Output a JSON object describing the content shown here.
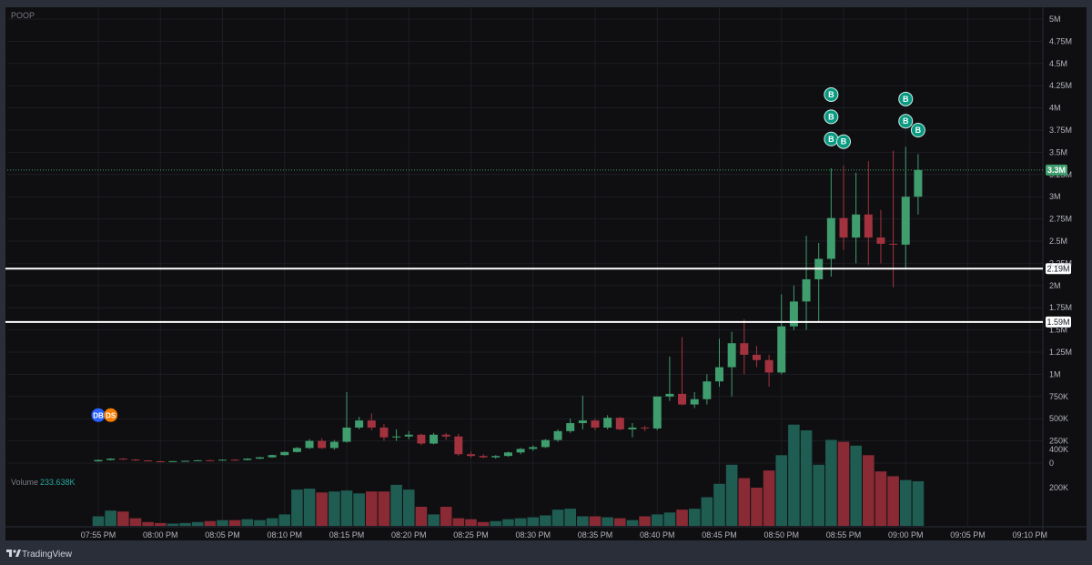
{
  "symbol": "POOP",
  "volume_label": "Volume",
  "volume_value": "233.638K",
  "brand": "TradingView",
  "colors": {
    "background": "#0f0f11",
    "frame": "#2a2e39",
    "up": "#26a69a",
    "up_body": "#3f9d6e",
    "down": "#a3323f",
    "vol_up": "#1f5c52",
    "vol_down": "#8a2a35",
    "grid": "#1c1e24",
    "marker": "#089981"
  },
  "chart_data": {
    "type": "candlestick",
    "title": "POOP",
    "price_ticks": [
      "0",
      "250K",
      "500K",
      "750K",
      "1M",
      "1.25M",
      "1.5M",
      "1.75M",
      "2M",
      "2.25M",
      "2.5M",
      "2.75M",
      "3M",
      "3.25M",
      "3.5M",
      "3.75M",
      "4M",
      "4.25M",
      "4.5M",
      "4.75M",
      "5M"
    ],
    "volume_ticks": [
      "200K",
      "400K"
    ],
    "time_ticks": [
      "07:55 PM",
      "08:00 PM",
      "08:05 PM",
      "08:10 PM",
      "08:15 PM",
      "08:20 PM",
      "08:25 PM",
      "08:30 PM",
      "08:35 PM",
      "08:40 PM",
      "08:45 PM",
      "08:50 PM",
      "08:55 PM",
      "09:00 PM",
      "09:05 PM",
      "09:10 PM"
    ],
    "ylim": [
      0,
      5000000
    ],
    "current_price_label": "3.3M",
    "horizontal_lines": [
      {
        "value": 2190000,
        "label": "2.19M"
      },
      {
        "value": 1590000,
        "label": "1.59M"
      }
    ],
    "candles": [
      {
        "t": "07:55 PM",
        "o": 20000,
        "h": 40000,
        "l": 15000,
        "c": 35000,
        "v": 50000
      },
      {
        "t": "07:56 PM",
        "o": 35000,
        "h": 55000,
        "l": 30000,
        "c": 50000,
        "v": 80000
      },
      {
        "t": "07:57 PM",
        "o": 50000,
        "h": 55000,
        "l": 35000,
        "c": 40000,
        "v": 75000
      },
      {
        "t": "07:58 PM",
        "o": 40000,
        "h": 45000,
        "l": 25000,
        "c": 30000,
        "v": 40000
      },
      {
        "t": "07:59 PM",
        "o": 30000,
        "h": 32000,
        "l": 18000,
        "c": 20000,
        "v": 20000
      },
      {
        "t": "08:00 PM",
        "o": 20000,
        "h": 25000,
        "l": 15000,
        "c": 18000,
        "v": 15000
      },
      {
        "t": "08:01 PM",
        "o": 18000,
        "h": 24000,
        "l": 14000,
        "c": 22000,
        "v": 12000
      },
      {
        "t": "08:02 PM",
        "o": 22000,
        "h": 28000,
        "l": 18000,
        "c": 25000,
        "v": 15000
      },
      {
        "t": "08:03 PM",
        "o": 25000,
        "h": 35000,
        "l": 22000,
        "c": 32000,
        "v": 20000
      },
      {
        "t": "08:04 PM",
        "o": 32000,
        "h": 38000,
        "l": 26000,
        "c": 30000,
        "v": 25000
      },
      {
        "t": "08:05 PM",
        "o": 30000,
        "h": 40000,
        "l": 25000,
        "c": 38000,
        "v": 30000
      },
      {
        "t": "08:06 PM",
        "o": 38000,
        "h": 45000,
        "l": 30000,
        "c": 35000,
        "v": 30000
      },
      {
        "t": "08:07 PM",
        "o": 35000,
        "h": 55000,
        "l": 30000,
        "c": 50000,
        "v": 35000
      },
      {
        "t": "08:08 PM",
        "o": 50000,
        "h": 70000,
        "l": 45000,
        "c": 65000,
        "v": 30000
      },
      {
        "t": "08:09 PM",
        "o": 65000,
        "h": 95000,
        "l": 60000,
        "c": 90000,
        "v": 40000
      },
      {
        "t": "08:10 PM",
        "o": 90000,
        "h": 130000,
        "l": 85000,
        "c": 125000,
        "v": 60000
      },
      {
        "t": "08:11 PM",
        "o": 125000,
        "h": 180000,
        "l": 120000,
        "c": 170000,
        "v": 190000
      },
      {
        "t": "08:12 PM",
        "o": 170000,
        "h": 270000,
        "l": 160000,
        "c": 250000,
        "v": 195000
      },
      {
        "t": "08:13 PM",
        "o": 250000,
        "h": 280000,
        "l": 160000,
        "c": 170000,
        "v": 175000
      },
      {
        "t": "08:14 PM",
        "o": 170000,
        "h": 260000,
        "l": 150000,
        "c": 240000,
        "v": 180000
      },
      {
        "t": "08:15 PM",
        "o": 240000,
        "h": 800000,
        "l": 230000,
        "c": 400000,
        "v": 185000
      },
      {
        "t": "08:16 PM",
        "o": 400000,
        "h": 520000,
        "l": 380000,
        "c": 480000,
        "v": 170000
      },
      {
        "t": "08:17 PM",
        "o": 480000,
        "h": 560000,
        "l": 370000,
        "c": 400000,
        "v": 180000
      },
      {
        "t": "08:18 PM",
        "o": 400000,
        "h": 440000,
        "l": 250000,
        "c": 290000,
        "v": 180000
      },
      {
        "t": "08:19 PM",
        "o": 290000,
        "h": 380000,
        "l": 250000,
        "c": 300000,
        "v": 215000
      },
      {
        "t": "08:20 PM",
        "o": 300000,
        "h": 360000,
        "l": 270000,
        "c": 320000,
        "v": 190000
      },
      {
        "t": "08:21 PM",
        "o": 320000,
        "h": 330000,
        "l": 200000,
        "c": 220000,
        "v": 100000
      },
      {
        "t": "08:22 PM",
        "o": 220000,
        "h": 340000,
        "l": 210000,
        "c": 320000,
        "v": 60000
      },
      {
        "t": "08:23 PM",
        "o": 320000,
        "h": 340000,
        "l": 260000,
        "c": 300000,
        "v": 100000
      },
      {
        "t": "08:24 PM",
        "o": 300000,
        "h": 330000,
        "l": 80000,
        "c": 100000,
        "v": 40000
      },
      {
        "t": "08:25 PM",
        "o": 100000,
        "h": 130000,
        "l": 60000,
        "c": 80000,
        "v": 35000
      },
      {
        "t": "08:26 PM",
        "o": 80000,
        "h": 100000,
        "l": 55000,
        "c": 65000,
        "v": 20000
      },
      {
        "t": "08:27 PM",
        "o": 65000,
        "h": 90000,
        "l": 50000,
        "c": 80000,
        "v": 25000
      },
      {
        "t": "08:28 PM",
        "o": 80000,
        "h": 130000,
        "l": 70000,
        "c": 120000,
        "v": 35000
      },
      {
        "t": "08:29 PM",
        "o": 120000,
        "h": 170000,
        "l": 100000,
        "c": 160000,
        "v": 40000
      },
      {
        "t": "08:30 PM",
        "o": 160000,
        "h": 200000,
        "l": 140000,
        "c": 180000,
        "v": 45000
      },
      {
        "t": "08:31 PM",
        "o": 180000,
        "h": 270000,
        "l": 170000,
        "c": 260000,
        "v": 55000
      },
      {
        "t": "08:32 PM",
        "o": 260000,
        "h": 380000,
        "l": 240000,
        "c": 360000,
        "v": 85000
      },
      {
        "t": "08:33 PM",
        "o": 360000,
        "h": 500000,
        "l": 340000,
        "c": 450000,
        "v": 90000
      },
      {
        "t": "08:34 PM",
        "o": 450000,
        "h": 760000,
        "l": 380000,
        "c": 480000,
        "v": 50000
      },
      {
        "t": "08:35 PM",
        "o": 480000,
        "h": 500000,
        "l": 370000,
        "c": 400000,
        "v": 50000
      },
      {
        "t": "08:36 PM",
        "o": 400000,
        "h": 540000,
        "l": 380000,
        "c": 510000,
        "v": 45000
      },
      {
        "t": "08:37 PM",
        "o": 510000,
        "h": 520000,
        "l": 370000,
        "c": 380000,
        "v": 40000
      },
      {
        "t": "08:38 PM",
        "o": 380000,
        "h": 450000,
        "l": 290000,
        "c": 400000,
        "v": 30000
      },
      {
        "t": "08:39 PM",
        "o": 400000,
        "h": 420000,
        "l": 360000,
        "c": 390000,
        "v": 50000
      },
      {
        "t": "08:40 PM",
        "o": 390000,
        "h": 750000,
        "l": 370000,
        "c": 750000,
        "v": 60000
      },
      {
        "t": "08:41 PM",
        "o": 750000,
        "h": 1200000,
        "l": 700000,
        "c": 780000,
        "v": 70000
      },
      {
        "t": "08:42 PM",
        "o": 780000,
        "h": 1420000,
        "l": 650000,
        "c": 660000,
        "v": 85000
      },
      {
        "t": "08:43 PM",
        "o": 660000,
        "h": 800000,
        "l": 620000,
        "c": 720000,
        "v": 90000
      },
      {
        "t": "08:44 PM",
        "o": 720000,
        "h": 1000000,
        "l": 660000,
        "c": 920000,
        "v": 150000
      },
      {
        "t": "08:45 PM",
        "o": 920000,
        "h": 1400000,
        "l": 860000,
        "c": 1080000,
        "v": 220000
      },
      {
        "t": "08:46 PM",
        "o": 1080000,
        "h": 1480000,
        "l": 750000,
        "c": 1350000,
        "v": 320000
      },
      {
        "t": "08:47 PM",
        "o": 1350000,
        "h": 1620000,
        "l": 1000000,
        "c": 1220000,
        "v": 250000
      },
      {
        "t": "08:48 PM",
        "o": 1220000,
        "h": 1320000,
        "l": 1080000,
        "c": 1160000,
        "v": 200000
      },
      {
        "t": "08:49 PM",
        "o": 1160000,
        "h": 1220000,
        "l": 860000,
        "c": 1020000,
        "v": 290000
      },
      {
        "t": "08:50 PM",
        "o": 1020000,
        "h": 1900000,
        "l": 1000000,
        "c": 1540000,
        "v": 370000
      },
      {
        "t": "08:51 PM",
        "o": 1540000,
        "h": 2000000,
        "l": 1500000,
        "c": 1820000,
        "v": 530000
      },
      {
        "t": "08:52 PM",
        "o": 1820000,
        "h": 2560000,
        "l": 1500000,
        "c": 2070000,
        "v": 500000
      },
      {
        "t": "08:53 PM",
        "o": 2070000,
        "h": 2480000,
        "l": 1600000,
        "c": 2300000,
        "v": 320000
      },
      {
        "t": "08:54 PM",
        "o": 2300000,
        "h": 3320000,
        "l": 2100000,
        "c": 2760000,
        "v": 450000
      },
      {
        "t": "08:55 PM",
        "o": 2760000,
        "h": 3350000,
        "l": 2400000,
        "c": 2540000,
        "v": 440000
      },
      {
        "t": "08:56 PM",
        "o": 2540000,
        "h": 3270000,
        "l": 2250000,
        "c": 2800000,
        "v": 420000
      },
      {
        "t": "08:57 PM",
        "o": 2800000,
        "h": 3400000,
        "l": 2230000,
        "c": 2540000,
        "v": 370000
      },
      {
        "t": "08:58 PM",
        "o": 2540000,
        "h": 2850000,
        "l": 2250000,
        "c": 2470000,
        "v": 285000
      },
      {
        "t": "08:59 PM",
        "o": 2470000,
        "h": 3520000,
        "l": 1980000,
        "c": 2460000,
        "v": 260000
      },
      {
        "t": "09:00 PM",
        "o": 2460000,
        "h": 3560000,
        "l": 2200000,
        "c": 3000000,
        "v": 240000
      },
      {
        "t": "09:01 PM",
        "o": 3000000,
        "h": 3480000,
        "l": 2800000,
        "c": 3300000,
        "v": 233638
      }
    ],
    "markers": [
      {
        "type": "DB",
        "t": "07:55 PM",
        "price": 540000,
        "color": "#2962ff"
      },
      {
        "type": "DS",
        "t": "07:56 PM",
        "price": 540000,
        "color": "#f57c00"
      },
      {
        "type": "B",
        "t": "08:54 PM",
        "price": 4150000,
        "color": "#089981"
      },
      {
        "type": "B",
        "t": "08:54 PM",
        "price": 3900000,
        "color": "#089981"
      },
      {
        "type": "B",
        "t": "08:54 PM",
        "price": 3650000,
        "color": "#089981"
      },
      {
        "type": "B",
        "t": "08:55 PM",
        "price": 3620000,
        "color": "#089981"
      },
      {
        "type": "B",
        "t": "09:00 PM",
        "price": 4100000,
        "color": "#089981"
      },
      {
        "type": "B",
        "t": "09:00 PM",
        "price": 3850000,
        "color": "#089981"
      },
      {
        "type": "B",
        "t": "09:01 PM",
        "price": 3750000,
        "color": "#089981"
      }
    ]
  }
}
